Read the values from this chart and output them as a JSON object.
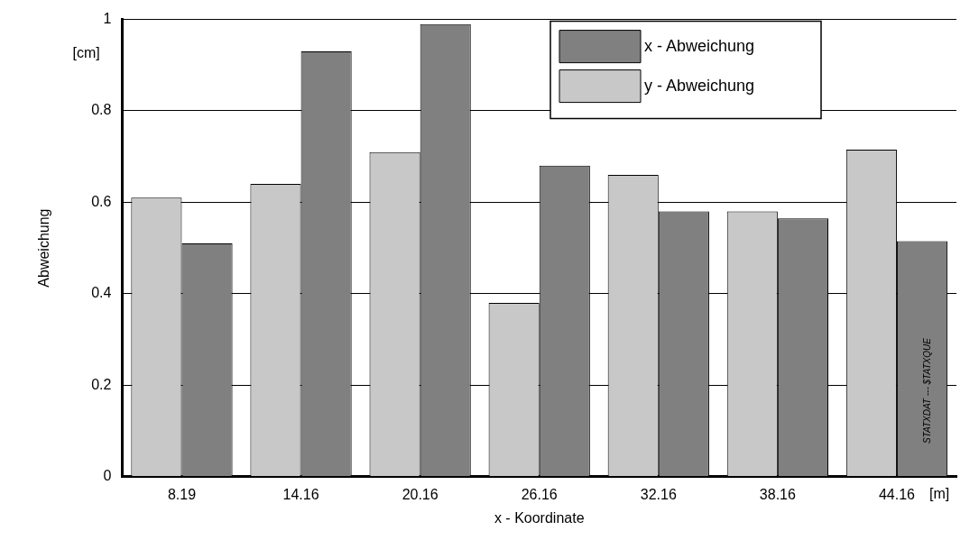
{
  "chart_data": {
    "type": "bar",
    "xlabel": "x - Koordinate",
    "ylabel": "Abweichung",
    "categories": [
      "8.19",
      "14.16",
      "20.16",
      "26.16",
      "32.16",
      "38.16",
      "44.16"
    ],
    "series": [
      {
        "name": "y - Abweichung",
        "color": "#c8c8c8",
        "values": [
          0.61,
          0.64,
          0.71,
          0.38,
          0.66,
          0.58,
          0.715
        ]
      },
      {
        "name": "x - Abweichung",
        "color": "#808080",
        "values": [
          0.51,
          0.93,
          0.99,
          0.68,
          0.58,
          0.565,
          0.515
        ]
      }
    ],
    "ylim": [
      0,
      1
    ],
    "yticks": [
      0,
      0.2,
      0.4,
      0.6,
      0.8,
      1
    ],
    "grid": "y",
    "legend": "top right",
    "annotations": [
      "[cm]",
      "[m]",
      "STATXDAT --- $TATXQUE"
    ]
  }
}
